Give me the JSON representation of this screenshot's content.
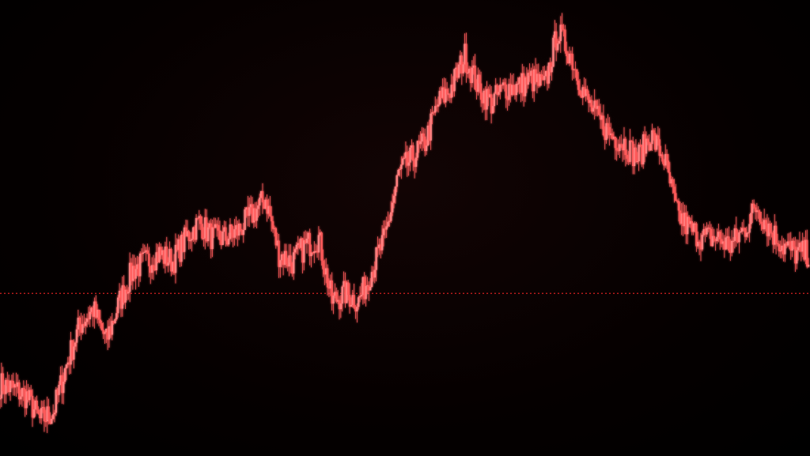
{
  "chart_data": {
    "type": "line",
    "title": "",
    "xlabel": "",
    "ylabel": "",
    "ylim": [
      100,
      215
    ],
    "grid": false,
    "legend": "none",
    "colors": {
      "price": "#ff5a5a",
      "fast_ma": "#e01818",
      "slow_ma": "#ff6a6a",
      "reference": "#d42020",
      "background": "#000000"
    },
    "reference_level": 141,
    "moving_averages": [
      {
        "window": 3
      },
      {
        "window": 8
      }
    ],
    "series": [
      {
        "values": [
          118,
          117,
          115,
          109,
          111,
          123,
          133,
          137,
          129,
          139,
          147,
          149,
          151,
          149,
          155,
          159,
          155,
          155,
          157,
          161,
          165,
          151,
          149,
          153,
          155,
          139,
          141,
          139,
          147,
          155,
          171,
          175,
          179,
          189,
          193,
          201,
          193,
          189,
          193,
          193,
          195,
          193,
          207,
          201,
          191,
          185,
          181,
          179,
          175,
          181,
          175,
          161,
          157,
          155,
          155,
          153,
          157,
          163,
          157,
          153,
          151,
          151
        ]
      }
    ]
  }
}
